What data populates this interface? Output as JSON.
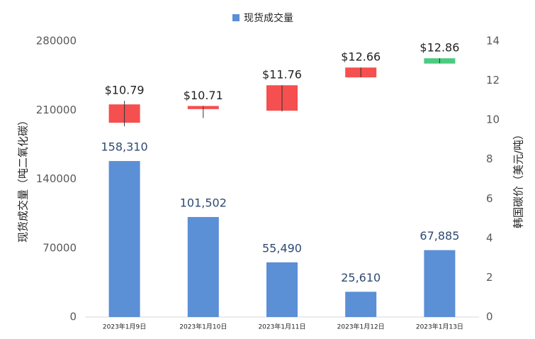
{
  "chart_data": {
    "type": "combo",
    "categories": [
      "2023年1月9日",
      "2023年1月10日",
      "2023年1月11日",
      "2023年1月12日",
      "2023年1月13日"
    ],
    "series": [
      {
        "name": "现货成交量",
        "type": "bar",
        "color": "#5b8fd6",
        "values": [
          158310,
          101502,
          55490,
          25610,
          67885
        ],
        "value_labels": [
          "158,310",
          "101,502",
          "55,490",
          "25,610",
          "67,885"
        ]
      }
    ],
    "candles": {
      "type": "candlestick",
      "axis": "y2",
      "up_color": "#f54f4f",
      "down_color": "#4ccb7f",
      "open": [
        9.86,
        10.55,
        10.47,
        12.16,
        13.13
      ],
      "close": [
        10.79,
        10.71,
        11.76,
        12.66,
        12.86
      ],
      "high": [
        10.97,
        10.71,
        11.76,
        12.66,
        13.13
      ],
      "low": [
        9.68,
        10.1,
        10.43,
        12.16,
        12.88
      ],
      "value_labels": [
        "$10.79",
        "$10.71",
        "$11.76",
        "$12.66",
        "$12.86"
      ]
    },
    "ylabel": "现货成交量（吨二氧化碳）",
    "y2label": "韩国碳价（美元/吨）",
    "ylim": [
      0,
      280000
    ],
    "yticks": [
      0,
      70000,
      140000,
      210000,
      280000
    ],
    "y2lim": [
      0,
      14
    ],
    "y2ticks": [
      0,
      2,
      4,
      6,
      8,
      10,
      12,
      14
    ],
    "legend": "top",
    "grid": false
  }
}
